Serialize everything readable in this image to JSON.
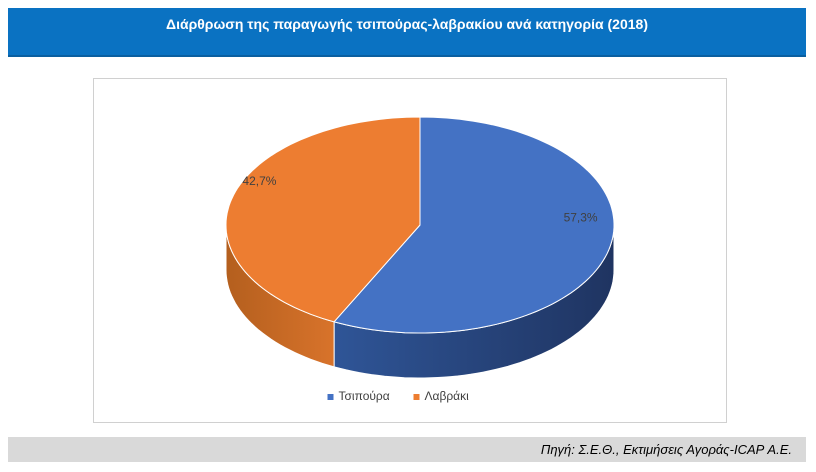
{
  "chart_data": {
    "type": "pie3d",
    "title": "Διάρθρωση της παραγωγής τσιπούρας-λαβρακίου ανά κατηγορία (2018)",
    "categories": [
      "Τσιπούρα",
      "Λαβράκι"
    ],
    "values": [
      57.3,
      42.7
    ],
    "value_labels": [
      "57,3%",
      "42,7%"
    ],
    "colors": [
      "#4472c4",
      "#ed7d31"
    ],
    "legend": "bottom",
    "source": "Πηγή: Σ.Ε.Θ., Εκτιμήσεις Αγοράς-ICAP Α.Ε."
  }
}
